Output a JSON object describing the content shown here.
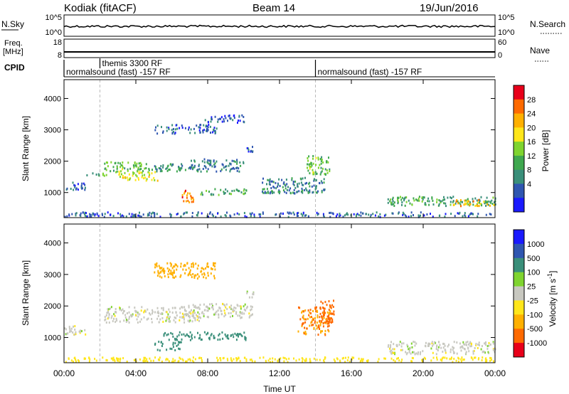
{
  "header": {
    "title": "Kodiak (fitACF)",
    "beam": "Beam 14",
    "date": "19/Jun/2016"
  },
  "strips": {
    "nsky_label": "N.Sky",
    "nsky_ticks": [
      "10^5",
      "10^0"
    ],
    "nsearch_label": "N.Search",
    "nsearch_ticks": [
      "10^5",
      "10^0"
    ],
    "freq_label": "Freq.",
    "freq_unit": "[MHz]",
    "freq_ticks": [
      "18",
      "8"
    ],
    "nave_label": "Nave",
    "nave_ticks": [
      "60",
      "0"
    ],
    "cpid_label": "CPID",
    "cpid_modes": [
      {
        "name": "normalsound (fast) -157 RF",
        "start": 0.0
      },
      {
        "name": "themis 3300 RF",
        "start": 2.0
      },
      {
        "name": "normalsound (fast) -157 RF",
        "start": 14.0
      }
    ]
  },
  "chart_data": [
    {
      "type": "heatmap",
      "title": "",
      "xlabel": "Time UT",
      "ylabel": "Slant Range [km]",
      "xlim": [
        0,
        24
      ],
      "ylim": [
        200,
        4600
      ],
      "x_ticks": [
        "00:00",
        "04:00",
        "08:00",
        "12:00",
        "16:00",
        "20:00",
        "00:00"
      ],
      "y_ticks": [
        1000,
        2000,
        3000,
        4000
      ],
      "colorbar": {
        "label": "Power [dB]",
        "ticks": [
          "28",
          "24",
          "20",
          "16",
          "12",
          "8",
          "4"
        ],
        "colors": [
          "#e8001a",
          "#ff6a00",
          "#ffb000",
          "#ffe61a",
          "#7fd42f",
          "#3fa84f",
          "#3a8f7a",
          "#2f56b0",
          "#1a1aff"
        ]
      },
      "regions": [
        {
          "t": [
            0.0,
            1.2
          ],
          "r": [
            1100,
            1400
          ],
          "value": 6
        },
        {
          "t": [
            1.2,
            2.6
          ],
          "r": [
            1550,
            1650
          ],
          "value": 12
        },
        {
          "t": [
            2.2,
            4.5
          ],
          "r": [
            1650,
            2000
          ],
          "value": 14
        },
        {
          "t": [
            3.0,
            5.2
          ],
          "r": [
            1400,
            1700
          ],
          "value": 18
        },
        {
          "t": [
            4.5,
            7.5
          ],
          "r": [
            1700,
            1950
          ],
          "value": 10
        },
        {
          "t": [
            6.5,
            7.2
          ],
          "r": [
            700,
            1100
          ],
          "value": 26
        },
        {
          "t": [
            7.5,
            10.2
          ],
          "r": [
            950,
            1150
          ],
          "value": 12
        },
        {
          "t": [
            7.0,
            10.0
          ],
          "r": [
            1700,
            2100
          ],
          "value": 8
        },
        {
          "t": [
            5.0,
            8.5
          ],
          "r": [
            2900,
            3200
          ],
          "value": 6
        },
        {
          "t": [
            7.8,
            10.0
          ],
          "r": [
            3250,
            3500
          ],
          "value": 6
        },
        {
          "t": [
            10.0,
            10.6
          ],
          "r": [
            2300,
            2500
          ],
          "value": 6
        },
        {
          "t": [
            11.0,
            14.5
          ],
          "r": [
            1000,
            1500
          ],
          "value": 8
        },
        {
          "t": [
            13.5,
            14.8
          ],
          "r": [
            1600,
            2200
          ],
          "value": 14
        },
        {
          "t": [
            18.0,
            24.0
          ],
          "r": [
            600,
            900
          ],
          "value": 12
        },
        {
          "t": [
            21.5,
            24.0
          ],
          "r": [
            600,
            800
          ],
          "value": 22
        },
        {
          "t": [
            0.0,
            24.0
          ],
          "r": [
            250,
            400
          ],
          "value": 6
        }
      ]
    },
    {
      "type": "heatmap",
      "title": "",
      "xlabel": "Time UT",
      "ylabel": "Slant Range [km]",
      "xlim": [
        0,
        24
      ],
      "ylim": [
        200,
        4600
      ],
      "x_ticks": [
        "00:00",
        "04:00",
        "08:00",
        "12:00",
        "16:00",
        "20:00",
        "00:00"
      ],
      "y_ticks": [
        1000,
        2000,
        3000,
        4000
      ],
      "colorbar": {
        "label": "Velocity [m s^-1]",
        "ticks": [
          "1000",
          "500",
          "100",
          "25",
          "-25",
          "-100",
          "-500",
          "-1000"
        ],
        "colors": [
          "#1a1aff",
          "#2f56b0",
          "#3a8f7a",
          "#7fd42f",
          "#c8c8c0",
          "#ffe61a",
          "#ffb000",
          "#ff6a00",
          "#e8001a"
        ]
      },
      "regions": [
        {
          "t": [
            0.0,
            1.2
          ],
          "r": [
            1100,
            1400
          ],
          "value": 0
        },
        {
          "t": [
            2.2,
            7.5
          ],
          "r": [
            1500,
            2000
          ],
          "value": 0
        },
        {
          "t": [
            5.5,
            10.2
          ],
          "r": [
            950,
            1200
          ],
          "value": 300
        },
        {
          "t": [
            5.0,
            6.5
          ],
          "r": [
            600,
            900
          ],
          "value": 300
        },
        {
          "t": [
            6.5,
            10.5
          ],
          "r": [
            1650,
            2100
          ],
          "value": 0
        },
        {
          "t": [
            5.0,
            8.5
          ],
          "r": [
            2900,
            3400
          ],
          "value": -150
        },
        {
          "t": [
            10.0,
            10.6
          ],
          "r": [
            2300,
            2500
          ],
          "value": 0
        },
        {
          "t": [
            13.0,
            14.8
          ],
          "r": [
            1100,
            2000
          ],
          "value": -500
        },
        {
          "t": [
            14.2,
            15.0
          ],
          "r": [
            1500,
            2200
          ],
          "value": -800
        },
        {
          "t": [
            18.0,
            24.0
          ],
          "r": [
            500,
            900
          ],
          "value": 0
        },
        {
          "t": [
            0.0,
            24.0
          ],
          "r": [
            250,
            400
          ],
          "value": -60
        }
      ]
    }
  ]
}
